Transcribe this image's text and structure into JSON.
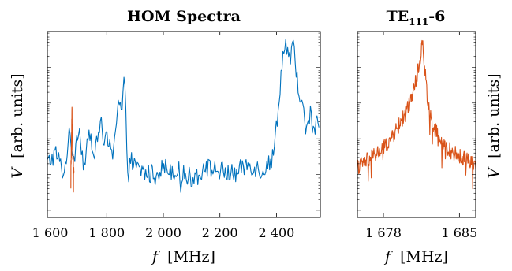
{
  "chart_data": [
    {
      "type": "line",
      "title": "HOM Spectra",
      "xlabel_var": "f",
      "xlabel_unit": "[MHz]",
      "ylabel_var": "V",
      "ylabel_unit": "[arb. units]",
      "xlim": [
        1590,
        2555
      ],
      "ylim": [
        -3.2,
        2.0
      ],
      "y_scale": "log",
      "x_ticks": [
        {
          "value": 1600,
          "label": "1 600"
        },
        {
          "value": 1800,
          "label": "1 800"
        },
        {
          "value": 2000,
          "label": "2 000"
        },
        {
          "value": 2200,
          "label": "2 200"
        },
        {
          "value": 2400,
          "label": "2 400"
        }
      ],
      "series": [
        {
          "color": "#0072bd",
          "x": [
            1590,
            1620,
            1650,
            1665,
            1685,
            1700,
            1720,
            1740,
            1760,
            1780,
            1790,
            1800,
            1820,
            1840,
            1855,
            1862,
            1868,
            1872,
            1876,
            1885,
            1900,
            1950,
            2000,
            2050,
            2100,
            2150,
            2200,
            2250,
            2300,
            2350,
            2390,
            2400,
            2410,
            2420,
            2430,
            2440,
            2450,
            2460,
            2470,
            2480,
            2490,
            2500,
            2510,
            2520,
            2530,
            2540,
            2550
          ],
          "y": [
            -1.7,
            -1.4,
            -2.0,
            -0.9,
            -1.5,
            -0.6,
            -1.8,
            -0.8,
            -1.4,
            -0.4,
            -1.2,
            -1.0,
            -1.5,
            0.1,
            -0.2,
            0.8,
            -0.5,
            -1.4,
            -2.0,
            -1.6,
            -1.8,
            -2.0,
            -1.8,
            -1.9,
            -2.1,
            -1.8,
            -1.9,
            -2.0,
            -1.7,
            -1.9,
            -1.5,
            -0.6,
            0.2,
            1.1,
            1.8,
            1.4,
            1.2,
            1.6,
            0.8,
            0.4,
            -0.1,
            -0.5,
            -0.7,
            -0.3,
            -0.8,
            -0.6,
            -0.6
          ],
          "noise": 0.28
        },
        {
          "color": "#d95319",
          "x": [
            1673,
            1675,
            1676,
            1677,
            1678,
            1679,
            1680,
            1682,
            1684
          ],
          "y": [
            -1.7,
            -1.3,
            -0.9,
            0.0,
            -0.8,
            -1.2,
            -1.5,
            -1.7,
            -1.8
          ],
          "noise": 0.2
        }
      ]
    },
    {
      "type": "line",
      "title_main": "TE",
      "title_sub": "111",
      "title_suffix": "-6",
      "xlabel_var": "f",
      "xlabel_unit": "[MHz]",
      "ylabel_var": "V",
      "ylabel_unit": "[arb. units]",
      "xlim": [
        1675.6,
        1686.5
      ],
      "ylim": [
        -3.2,
        2.0
      ],
      "y_scale": "log",
      "x_ticks": [
        {
          "value": 1678,
          "label": "1 678"
        },
        {
          "value": 1685,
          "label": "1 685"
        }
      ],
      "series": [
        {
          "color": "#d95319",
          "x": [
            1675.6,
            1676.5,
            1677.5,
            1678.5,
            1679.5,
            1680.3,
            1680.9,
            1681.3,
            1681.6,
            1681.8,
            1682.0,
            1682.3,
            1682.7,
            1683.3,
            1684.0,
            1685.0,
            1686.0,
            1686.5
          ],
          "y": [
            -1.8,
            -1.6,
            -1.4,
            -1.1,
            -0.6,
            -0.1,
            0.5,
            1.1,
            1.7,
            1.0,
            0.3,
            -0.3,
            -0.7,
            -1.1,
            -1.3,
            -1.5,
            -1.6,
            -1.7
          ],
          "noise": 0.22
        }
      ]
    }
  ]
}
